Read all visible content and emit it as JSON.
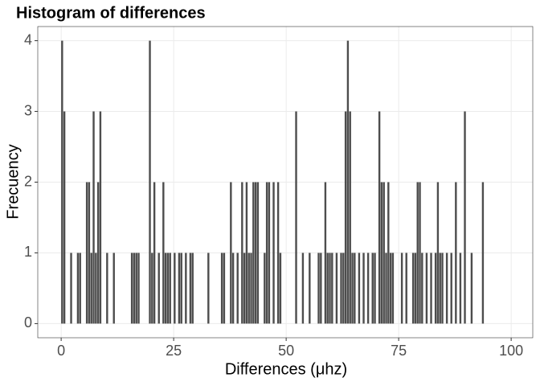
{
  "chart_data": {
    "type": "histogram",
    "title": "Histogram of differences",
    "x_label": "Differences (μhz)",
    "y_label": "Frecuency",
    "color": "#4d4d4d",
    "bins": [
      0,
      0.5,
      1,
      1.5,
      2,
      2.5,
      3,
      3.5,
      4,
      4.5,
      5,
      5.5,
      6,
      6.5,
      7,
      7.5,
      8,
      8.5,
      9,
      9.5,
      10,
      10.5,
      11,
      11.5,
      12,
      12.5,
      13,
      13.5,
      14,
      14.5,
      15,
      15.5,
      16,
      16.5,
      17,
      17.5,
      18,
      18.5,
      19,
      19.5,
      20,
      20.5,
      21,
      21.5,
      22,
      22.5,
      23,
      23.5,
      24,
      24.5,
      25,
      25.5,
      26,
      26.5,
      27,
      27.5,
      28,
      28.5,
      29,
      29.5,
      30,
      30.5,
      31,
      31.5,
      32,
      32.5,
      33,
      33.5,
      34,
      34.5,
      35,
      35.5,
      36,
      36.5,
      37,
      37.5,
      38,
      38.5,
      39,
      39.5,
      40,
      40.5,
      41,
      41.5,
      42,
      42.5,
      43,
      43.5,
      44,
      44.5,
      45,
      45.5,
      46,
      46.5,
      47,
      47.5,
      48,
      48.5,
      49,
      49.5,
      50,
      50.5,
      51,
      51.5,
      52,
      52.5,
      53,
      53.5,
      54,
      54.5,
      55,
      55.5,
      56,
      56.5,
      57,
      57.5,
      58,
      58.5,
      59,
      59.5,
      60,
      60.5,
      61,
      61.5,
      62,
      62.5,
      63,
      63.5,
      64,
      64.5,
      65,
      65.5,
      66,
      66.5,
      67,
      67.5,
      68,
      68.5,
      69,
      69.5,
      70,
      70.5,
      71,
      71.5,
      72,
      72.5,
      73,
      73.5,
      74,
      74.5,
      75,
      75.5,
      76,
      76.5,
      77,
      77.5,
      78,
      78.5,
      79,
      79.5,
      80,
      80.5,
      81,
      81.5,
      82,
      82.5,
      83,
      83.5,
      84,
      84.5,
      85,
      85.5,
      86,
      86.5,
      87,
      87.5,
      88,
      88.5,
      89,
      89.5,
      90,
      90.5,
      91,
      91.5,
      92,
      92.5,
      93,
      93.5,
      94
    ],
    "values": [
      4,
      3,
      0,
      0,
      1,
      0,
      0,
      1,
      1,
      0,
      0,
      2,
      2,
      1,
      3,
      1,
      2,
      3,
      0,
      0,
      1,
      0,
      0,
      1,
      0,
      0,
      0,
      0,
      0,
      0,
      0,
      1,
      1,
      1,
      1,
      0,
      0,
      0,
      0,
      4,
      1,
      2,
      0,
      1,
      0,
      2,
      1,
      1,
      1,
      0,
      1,
      0,
      1,
      1,
      0,
      1,
      0,
      1,
      1,
      0,
      0,
      0,
      0,
      0,
      0,
      1,
      0,
      0,
      0,
      0,
      0,
      1,
      1,
      0,
      0,
      2,
      1,
      0,
      1,
      0,
      2,
      1,
      2,
      1,
      1,
      2,
      2,
      2,
      0,
      0,
      1,
      2,
      2,
      0,
      2,
      0,
      2,
      1,
      0,
      0,
      0,
      0,
      0,
      0,
      3,
      0,
      0,
      1,
      0,
      0,
      1,
      0,
      0,
      0,
      1,
      1,
      0,
      2,
      1,
      1,
      1,
      0,
      1,
      0,
      1,
      1,
      3,
      4,
      3,
      1,
      1,
      0,
      1,
      0,
      1,
      0,
      1,
      0,
      1,
      1,
      0,
      3,
      2,
      2,
      1,
      2,
      1,
      1,
      0,
      0,
      0,
      1,
      0,
      1,
      0,
      0,
      1,
      1,
      2,
      2,
      1,
      0,
      1,
      0,
      1,
      0,
      1,
      2,
      1,
      1,
      0,
      1,
      0,
      1,
      0,
      2,
      0,
      1,
      0,
      3,
      0,
      0,
      1,
      0,
      0,
      0,
      0,
      2
    ],
    "xlim": [
      -5.2,
      104.8
    ],
    "ylim": [
      -0.2,
      4.2
    ],
    "xticks": [
      0,
      25,
      50,
      75,
      100
    ],
    "yticks": [
      0,
      1,
      2,
      3,
      4
    ],
    "grid": true
  }
}
